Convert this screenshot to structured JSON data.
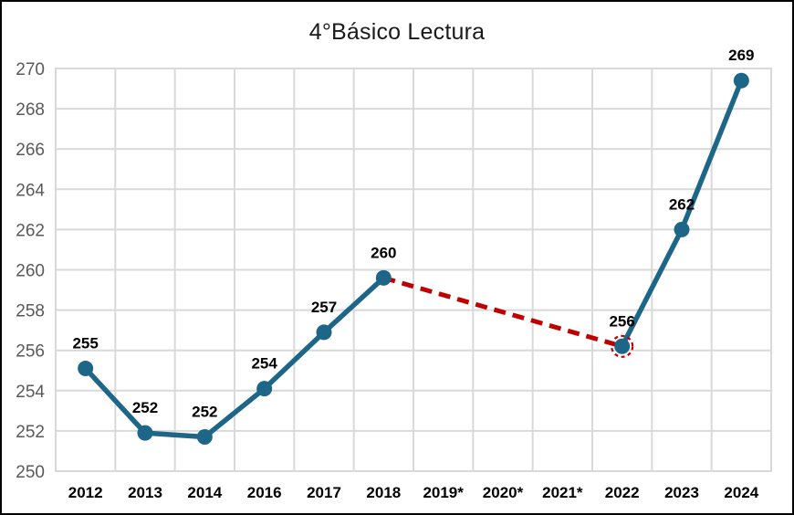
{
  "chart_data": {
    "type": "line",
    "title": "4°Básico Lectura",
    "categories": [
      "2012",
      "2013",
      "2014",
      "2016",
      "2017",
      "2018",
      "2019*",
      "2020*",
      "2021*",
      "2022",
      "2023",
      "2024"
    ],
    "series": [
      {
        "name": "Lectura",
        "values": [
          255.1,
          251.9,
          251.7,
          254.1,
          256.9,
          259.6,
          null,
          null,
          null,
          256.2,
          262.0,
          269.4
        ],
        "point_labels": [
          "255",
          "252",
          "252",
          "254",
          "257",
          "260",
          "",
          "",
          "",
          "256",
          "262",
          "269"
        ]
      }
    ],
    "ylim": [
      250,
      270
    ],
    "ytick_step": 2,
    "ytick_labels": [
      "250",
      "252",
      "254",
      "256",
      "258",
      "260",
      "262",
      "264",
      "266",
      "268",
      "270"
    ],
    "grid": true,
    "legend": "none",
    "xlabel": "",
    "ylabel": "",
    "bridge": {
      "from_index": 5,
      "to_index": 9,
      "style": "dashed"
    },
    "highlight": {
      "index": 9,
      "ring_style": "dashed"
    },
    "colors": {
      "line": "#1D6687",
      "marker": "#1D6687",
      "bridge": "#C00000",
      "highlight_ring": "#C00000",
      "grid": "#D9D9D9",
      "plot_border": "#D9D9D9",
      "y_tick_label": "#595959",
      "x_tick_label": "#000000",
      "data_label": "#000000",
      "title": "#1a1a1a",
      "frame": "#000000",
      "background": "#FFFFFF"
    }
  }
}
